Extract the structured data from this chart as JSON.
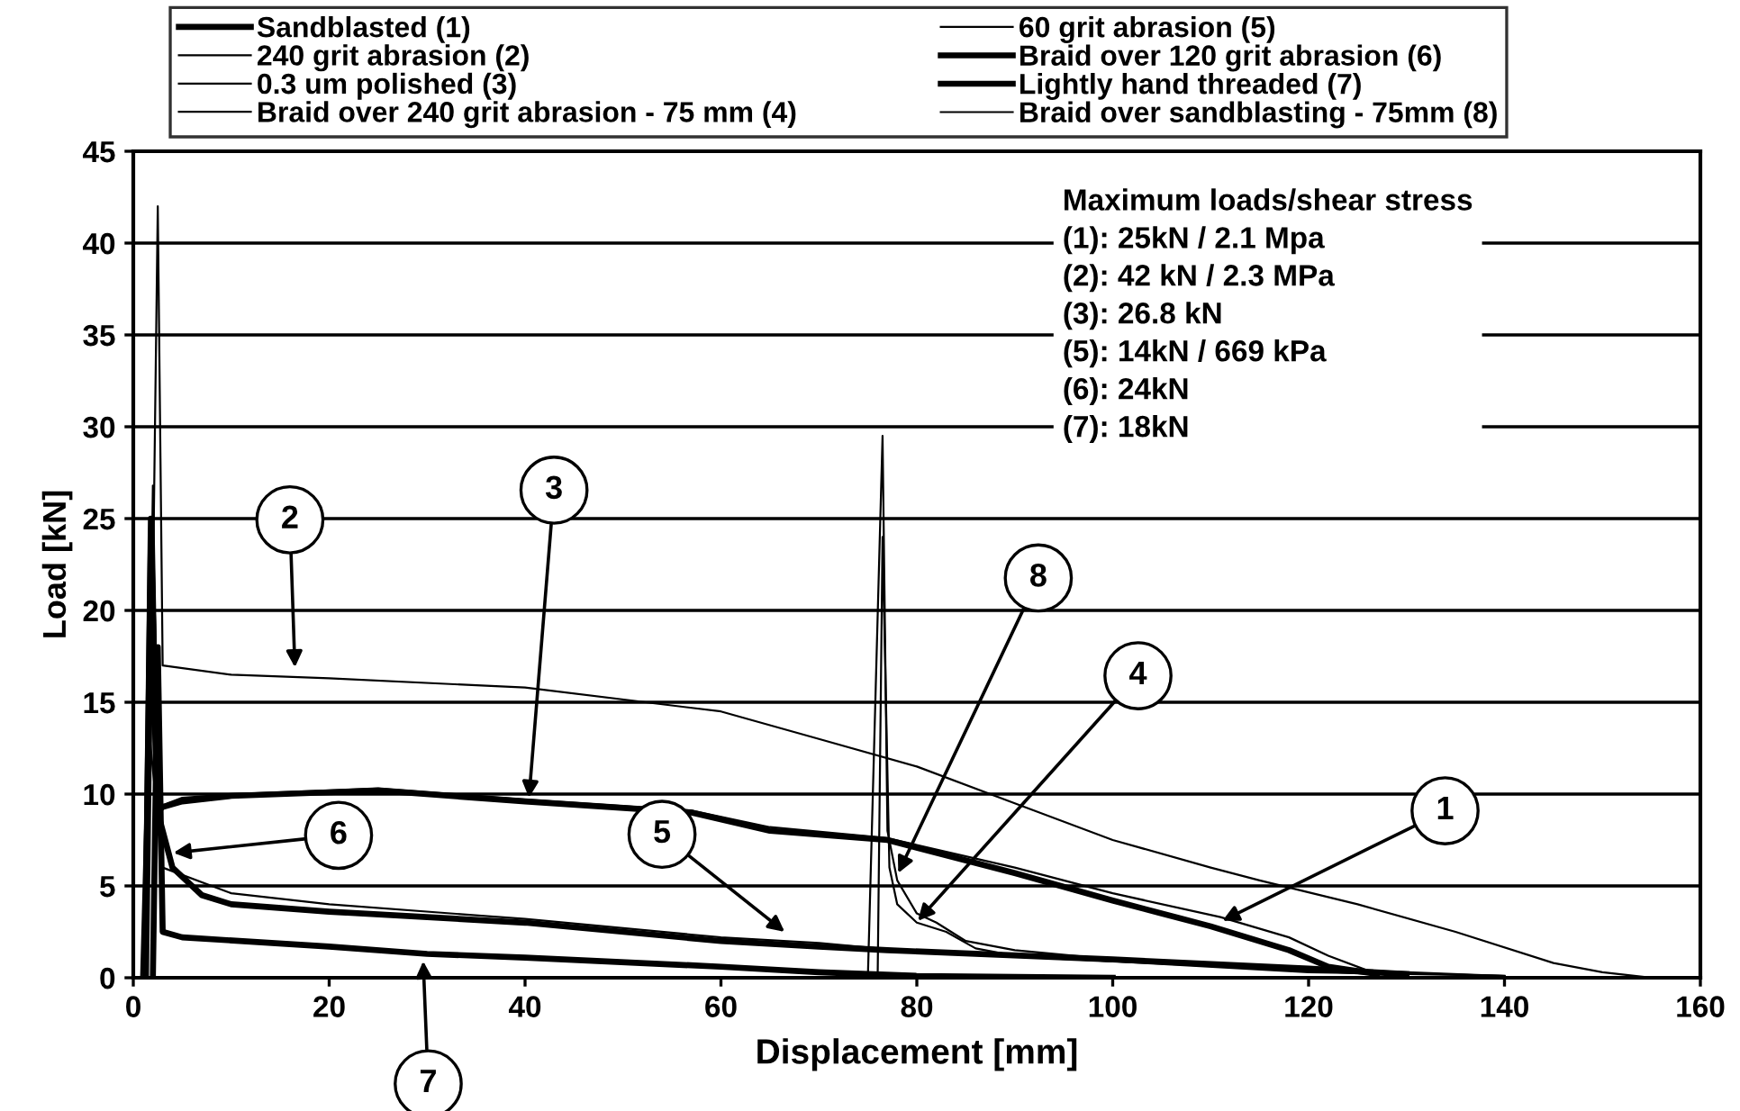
{
  "chart_data": {
    "type": "line",
    "xlabel": "Displacement [mm]",
    "ylabel": "Load [kN]",
    "xlim": [
      0,
      160
    ],
    "xticks": [
      0,
      20,
      40,
      60,
      80,
      100,
      120,
      140,
      160
    ],
    "ylim": [
      0,
      45
    ],
    "yticks": [
      0,
      5,
      10,
      15,
      20,
      25,
      30,
      35,
      40,
      45
    ],
    "grid": "y",
    "legend": "top",
    "marker": "none",
    "line_style": "solid",
    "series": [
      {
        "name": "Sandblasted (1)",
        "color": "#000000",
        "x": [
          1.2,
          1.8,
          2.4,
          3,
          5,
          10,
          20,
          25,
          40,
          57,
          65,
          77,
          90,
          100,
          110,
          118,
          122,
          127
        ],
        "values": [
          0,
          25,
          9,
          9.3,
          9.6,
          9.9,
          10.1,
          10.2,
          9.6,
          9,
          8,
          7.5,
          5.7,
          4.2,
          2.8,
          1.5,
          0.6,
          0.2
        ]
      },
      {
        "name": "240 grit abrasion (2)",
        "color": "#000000",
        "x": [
          1.5,
          2.5,
          3,
          10,
          20,
          40,
          60,
          70,
          80,
          90,
          100,
          110,
          115,
          125,
          135,
          145,
          150,
          155
        ],
        "values": [
          0,
          42,
          17,
          16.5,
          16.3,
          15.8,
          14.5,
          13,
          11.5,
          9.5,
          7.5,
          6,
          5.3,
          4,
          2.5,
          0.8,
          0.3,
          0
        ]
      },
      {
        "name": "0.3 um polished (3)",
        "color": "#000000",
        "x": [
          1.3,
          2,
          2.6,
          3.5,
          5,
          10,
          25,
          40,
          57,
          65,
          77,
          90,
          100,
          111,
          118,
          122,
          126,
          130
        ],
        "values": [
          0,
          26.8,
          9,
          9.5,
          9.8,
          10,
          10.3,
          9.7,
          9.1,
          8.2,
          7.6,
          6,
          4.6,
          3.3,
          2.2,
          1.2,
          0.4,
          0.1
        ]
      },
      {
        "name": "Braid over 240 grit abrasion - 75 mm (4)",
        "color": "#000000",
        "x": [
          76,
          76.5,
          77.2,
          78,
          80,
          83,
          86,
          90,
          100,
          120,
          140
        ],
        "values": [
          0,
          24,
          6,
          4,
          3,
          2.5,
          1.6,
          1.2,
          0.9,
          0.3,
          0.1
        ]
      },
      {
        "name": "60 grit abrasion (5)",
        "color": "#000000",
        "x": [
          0.8,
          1.5,
          3,
          10,
          20,
          40,
          60,
          70,
          80,
          100,
          125,
          140
        ],
        "values": [
          0,
          14,
          6,
          4.6,
          4,
          3.2,
          2.2,
          1.9,
          1.4,
          0.9,
          0.4,
          0.1
        ]
      },
      {
        "name": "Braid over 120 grit abrasion (6)",
        "color": "#000000",
        "x": [
          1.2,
          1.8,
          2.5,
          4,
          7,
          10,
          20,
          40,
          60,
          70,
          77,
          100,
          120,
          130
        ],
        "values": [
          0,
          24,
          9,
          6,
          4.5,
          4,
          3.6,
          3,
          2,
          1.7,
          1.5,
          1,
          0.5,
          0.2
        ]
      },
      {
        "name": "Lightly hand threaded (7)",
        "color": "#000000",
        "x": [
          2,
          2.5,
          3,
          5,
          20,
          30,
          40,
          60,
          70,
          80,
          100
        ],
        "values": [
          0,
          18,
          2.5,
          2.2,
          1.7,
          1.3,
          1.1,
          0.6,
          0.3,
          0.1,
          0
        ]
      },
      {
        "name": "Braid over sandblasting - 75mm (8)",
        "color": "#000000",
        "x": [
          75,
          76.5,
          77,
          78,
          80,
          82,
          85,
          90,
          100,
          120,
          140
        ],
        "values": [
          0,
          29.5,
          8,
          5.3,
          3.5,
          3,
          2,
          1.5,
          1,
          0.4,
          0.1
        ]
      }
    ],
    "annotations": [
      {
        "text": "2",
        "x": 16.5,
        "y": 16.9
      },
      {
        "text": "3",
        "x": 40.4,
        "y": 9.8
      },
      {
        "text": "6",
        "x": 4.1,
        "y": 6.8
      },
      {
        "text": "5",
        "x": 66.5,
        "y": 2.5
      },
      {
        "text": "7",
        "x": 29.6,
        "y": 0.9
      },
      {
        "text": "8",
        "x": 78.1,
        "y": 5.7
      },
      {
        "text": "4",
        "x": 80.1,
        "y": 3.1
      },
      {
        "text": "1",
        "x": 111.2,
        "y": 3.1
      },
      "Maximum loads/shear stress",
      "(1): 25kN / 2.1 Mpa",
      "(2): 42 kN / 2.3 MPa",
      "(3): 26.8 kN",
      "(5): 14kN / 669 kPa",
      "(6): 24kN",
      "(7): 18kN"
    ]
  }
}
